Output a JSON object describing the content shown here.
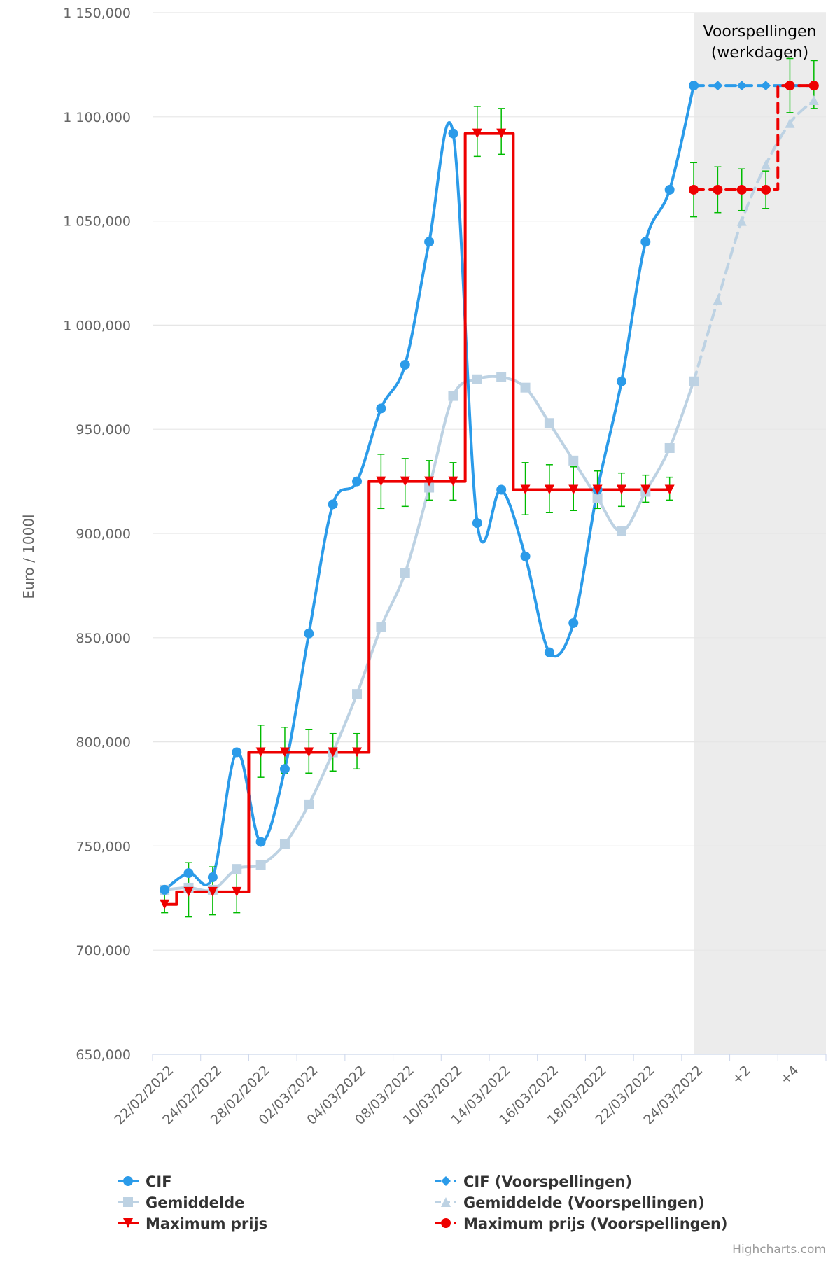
{
  "chart_data": {
    "type": "line",
    "ylabel": "Euro / 1000l",
    "ylim": [
      650000,
      1150000
    ],
    "y_ticks": [
      "650,000",
      "700,000",
      "750,000",
      "800,000",
      "850,000",
      "900,000",
      "950,000",
      "1 000,000",
      "1 050,000",
      "1 100,000",
      "1 150,000"
    ],
    "y_tick_values": [
      650000,
      700000,
      750000,
      800000,
      850000,
      900000,
      950000,
      1000000,
      1050000,
      1100000,
      1150000
    ],
    "x_tick_labels": [
      "22/02/2022",
      "24/02/2022",
      "28/02/2022",
      "02/03/2022",
      "04/03/2022",
      "08/03/2022",
      "10/03/2022",
      "14/03/2022",
      "16/03/2022",
      "18/03/2022",
      "22/03/2022",
      "24/03/2022",
      "+2",
      "+4"
    ],
    "x_tick_positions": [
      0,
      2,
      4,
      6,
      8,
      10,
      12,
      14,
      16,
      18,
      20,
      22,
      24,
      26
    ],
    "x_count": 28,
    "forecast_band": {
      "from_index": 22,
      "label_line1": "Voorspellingen",
      "label_line2": "(werkdagen)",
      "color": "#ececec"
    },
    "series": [
      {
        "name": "CIF",
        "color": "#2b9be9",
        "marker": "circle",
        "dash": false,
        "smooth": true,
        "x": [
          0,
          1,
          2,
          3,
          4,
          5,
          6,
          7,
          8,
          9,
          10,
          11,
          12,
          13,
          14,
          15,
          16,
          17,
          18,
          19,
          20,
          21,
          22
        ],
        "values": [
          729000,
          737000,
          735000,
          795000,
          752000,
          787000,
          852000,
          914000,
          925000,
          960000,
          981000,
          1040000,
          1092000,
          905000,
          921000,
          889000,
          843000,
          857000,
          921000,
          973000,
          1040000,
          1065000,
          1115000
        ]
      },
      {
        "name": "Gemiddelde",
        "color": "#bdd2e3",
        "marker": "square",
        "dash": false,
        "smooth": true,
        "x": [
          0,
          1,
          2,
          3,
          4,
          5,
          6,
          7,
          8,
          9,
          10,
          11,
          12,
          13,
          14,
          15,
          16,
          17,
          18,
          19,
          20,
          21,
          22
        ],
        "values": [
          729000,
          730000,
          729000,
          739000,
          741000,
          751000,
          770000,
          795000,
          823000,
          855000,
          881000,
          922000,
          966000,
          974000,
          975000,
          970000,
          953000,
          935000,
          917000,
          901000,
          920000,
          941000,
          973000
        ]
      },
      {
        "name": "Maximum prijs",
        "color": "#ee0000",
        "marker": "triangle-down",
        "dash": false,
        "step": true,
        "x": [
          0,
          1,
          2,
          3,
          4,
          5,
          6,
          7,
          8,
          9,
          10,
          11,
          12,
          13,
          14,
          15,
          16,
          17,
          18,
          19,
          20,
          21
        ],
        "values": [
          722000,
          728000,
          728000,
          728000,
          795000,
          795000,
          795000,
          795000,
          795000,
          925000,
          925000,
          925000,
          925000,
          1092000,
          1092000,
          921000,
          921000,
          921000,
          921000,
          921000,
          921000,
          921000
        ],
        "error_bars": [
          [
            718000,
            727000
          ],
          [
            716000,
            742000
          ],
          [
            717000,
            740000
          ],
          [
            718000,
            739000
          ],
          [
            783000,
            808000
          ],
          [
            785000,
            807000
          ],
          [
            785000,
            806000
          ],
          [
            786000,
            804000
          ],
          [
            787000,
            804000
          ],
          [
            912000,
            938000
          ],
          [
            913000,
            936000
          ],
          [
            916000,
            935000
          ],
          [
            916000,
            934000
          ],
          [
            1081000,
            1105000
          ],
          [
            1082000,
            1104000
          ],
          [
            909000,
            934000
          ],
          [
            910000,
            933000
          ],
          [
            911000,
            932000
          ],
          [
            912000,
            930000
          ],
          [
            913000,
            929000
          ],
          [
            915000,
            928000
          ],
          [
            916000,
            927000
          ]
        ]
      },
      {
        "name": "CIF (Voorspellingen)",
        "color": "#2b9be9",
        "marker": "diamond",
        "dash": true,
        "smooth": false,
        "x": [
          22,
          23,
          24,
          25,
          26,
          27
        ],
        "values": [
          1115000,
          1115000,
          1115000,
          1115000,
          1115000,
          1115000
        ]
      },
      {
        "name": "Gemiddelde (Voorspellingen)",
        "color": "#bdd2e3",
        "marker": "triangle",
        "dash": true,
        "smooth": true,
        "x": [
          22,
          23,
          24,
          25,
          26,
          27
        ],
        "values": [
          973000,
          1012000,
          1050000,
          1077000,
          1097000,
          1108000
        ]
      },
      {
        "name": "Maximum prijs (Voorspellingen)",
        "color": "#ee0000",
        "marker": "circle",
        "dash": true,
        "step": true,
        "x": [
          22,
          23,
          24,
          25,
          26,
          27
        ],
        "values": [
          1065000,
          1065000,
          1065000,
          1065000,
          1115000,
          1115000
        ],
        "error_bars": [
          [
            1052000,
            1078000
          ],
          [
            1054000,
            1076000
          ],
          [
            1055000,
            1075000
          ],
          [
            1056000,
            1074000
          ],
          [
            1102000,
            1128000
          ],
          [
            1104000,
            1127000
          ]
        ]
      }
    ],
    "error_bar_color": "#00bb00",
    "legend_position": "bottom",
    "credits": "Highcharts.com"
  }
}
